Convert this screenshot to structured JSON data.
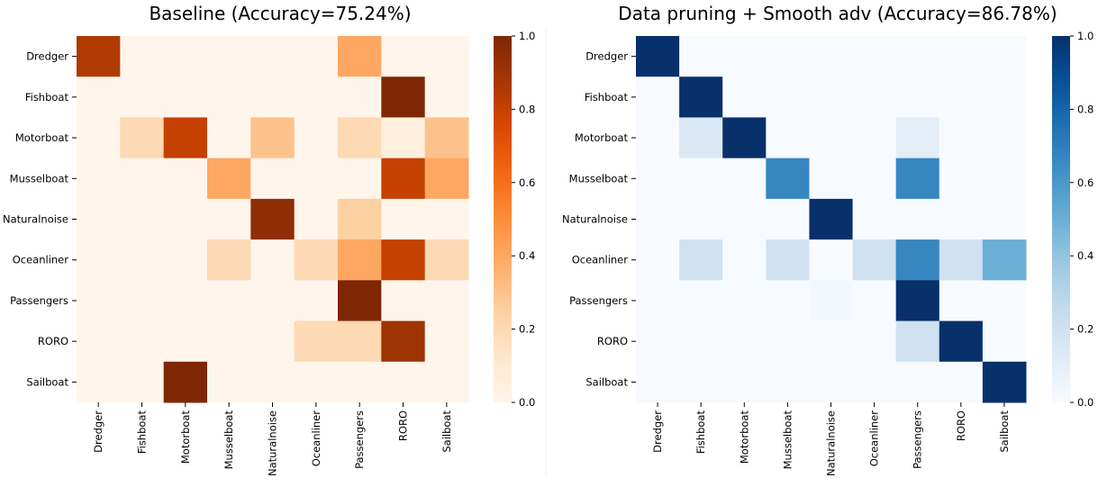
{
  "chart_data": [
    {
      "type": "heatmap",
      "title": "Baseline (Accuracy=75.24%)",
      "colormap": "Oranges",
      "rows": [
        "Dredger",
        "Fishboat",
        "Motorboat",
        "Musselboat",
        "Naturalnoise",
        "Oceanliner",
        "Passengers",
        "RORO",
        "Sailboat"
      ],
      "columns": [
        "Dredger",
        "Fishboat",
        "Motorboat",
        "Musselboat",
        "Naturalnoise",
        "Oceanliner",
        "Passengers",
        "RORO",
        "Sailboat"
      ],
      "values": [
        [
          0.85,
          0,
          0,
          0,
          0,
          0,
          0.4,
          0,
          0
        ],
        [
          0,
          0,
          0,
          0,
          0,
          0,
          0,
          1.0,
          0
        ],
        [
          0,
          0.2,
          0.8,
          0,
          0.3,
          0,
          0.2,
          0.05,
          0.3
        ],
        [
          0,
          0,
          0,
          0.4,
          0,
          0,
          0,
          0.8,
          0.4
        ],
        [
          0,
          0,
          0,
          0,
          0.95,
          0,
          0.25,
          0,
          0
        ],
        [
          0,
          0,
          0,
          0.2,
          0,
          0.2,
          0.4,
          0.8,
          0.2
        ],
        [
          0,
          0,
          0,
          0,
          0,
          0,
          1.0,
          0,
          0
        ],
        [
          0,
          0,
          0,
          0,
          0,
          0.2,
          0.2,
          0.9,
          0
        ],
        [
          0,
          0,
          1.0,
          0,
          0,
          0,
          0,
          0,
          0
        ]
      ],
      "colorbar": {
        "min": 0.0,
        "max": 1.0,
        "ticks": [
          "0.0",
          "0.2",
          "0.4",
          "0.6",
          "0.8",
          "1.0"
        ]
      }
    },
    {
      "type": "heatmap",
      "title": "Data pruning + Smooth adv (Accuracy=86.78%)",
      "colormap": "Blues",
      "rows": [
        "Dredger",
        "Fishboat",
        "Motorboat",
        "Musselboat",
        "Naturalnoise",
        "Oceanliner",
        "Passengers",
        "RORO",
        "Sailboat"
      ],
      "columns": [
        "Dredger",
        "Fishboat",
        "Motorboat",
        "Musselboat",
        "Naturalnoise",
        "Oceanliner",
        "Passengers",
        "RORO",
        "Sailboat"
      ],
      "values": [
        [
          1.0,
          0,
          0,
          0,
          0,
          0,
          0,
          0,
          0
        ],
        [
          0,
          1.0,
          0,
          0,
          0,
          0,
          0,
          0,
          0
        ],
        [
          0,
          0.14,
          1.0,
          0,
          0,
          0,
          0.1,
          0,
          0
        ],
        [
          0,
          0,
          0,
          0.67,
          0,
          0,
          0.67,
          0,
          0
        ],
        [
          0,
          0,
          0,
          0,
          1.0,
          0,
          0,
          0,
          0
        ],
        [
          0,
          0.2,
          0,
          0.2,
          0,
          0.2,
          0.67,
          0.2,
          0.5
        ],
        [
          0,
          0,
          0,
          0,
          0.02,
          0,
          1.0,
          0,
          0
        ],
        [
          0,
          0,
          0,
          0,
          0,
          0,
          0.2,
          1.0,
          0
        ],
        [
          0,
          0,
          0,
          0,
          0,
          0,
          0,
          0,
          1.0
        ]
      ],
      "colorbar": {
        "min": 0.0,
        "max": 1.0,
        "ticks": [
          "0.0",
          "0.2",
          "0.4",
          "0.6",
          "0.8",
          "1.0"
        ]
      }
    }
  ]
}
